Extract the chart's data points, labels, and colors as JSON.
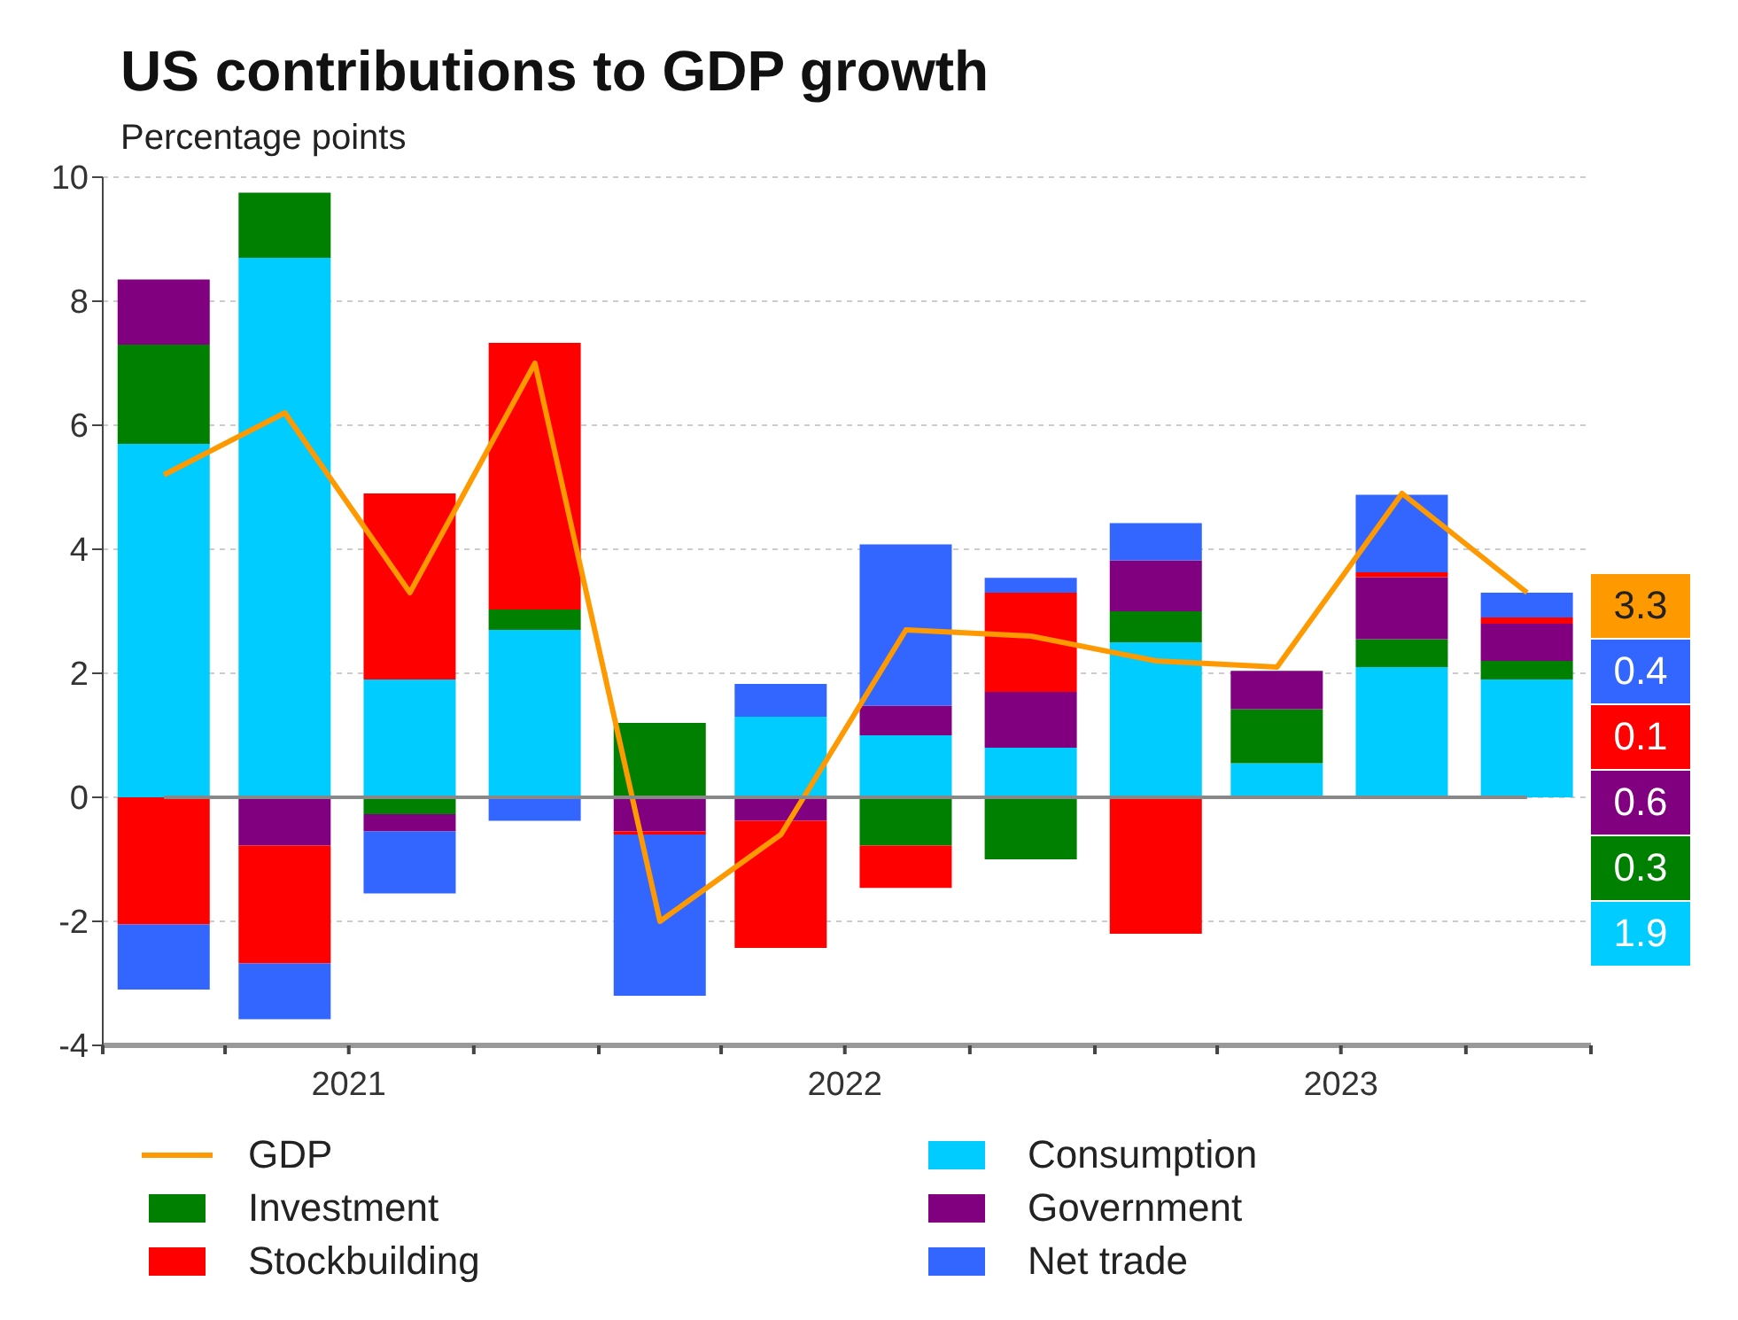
{
  "chart_data": {
    "type": "bar",
    "title": "US contributions to GDP growth",
    "subtitle": "Percentage points",
    "x": [
      "2021-02-15",
      "2021-05-15",
      "2021-08-15",
      "2021-11-15",
      "2022-02-15",
      "2022-05-15",
      "2022-08-15",
      "2022-11-15",
      "2023-02-15",
      "2023-05-15",
      "2023-08-15",
      "2023-11-15"
    ],
    "xlim": [
      "2021-01-01",
      "2024-01-01"
    ],
    "xticks": [
      {
        "value": "2021-01-01",
        "label": null
      },
      {
        "value": "2021-04-01",
        "label": null
      },
      {
        "value": "2021-07-01",
        "label": "2021"
      },
      {
        "value": "2021-10-01",
        "label": null
      },
      {
        "value": "2022-01-01",
        "label": null
      },
      {
        "value": "2022-04-01",
        "label": null
      },
      {
        "value": "2022-07-01",
        "label": "2022"
      },
      {
        "value": "2022-10-01",
        "label": null
      },
      {
        "value": "2023-01-01",
        "label": null
      },
      {
        "value": "2023-04-01",
        "label": null
      },
      {
        "value": "2023-07-01",
        "label": "2023"
      },
      {
        "value": "2023-10-01",
        "label": null
      },
      {
        "value": "2024-01-01",
        "label": null
      }
    ],
    "annotations": [
      "3.3",
      "0.4",
      "0.1",
      "0.6",
      "0.3",
      "1.9"
    ],
    "stacked": true,
    "ylim": [
      -4,
      10
    ],
    "yticks": [
      -4,
      -2,
      0,
      2,
      4,
      6,
      8,
      10
    ],
    "grid": "y",
    "legend": "bottom",
    "series": [
      {
        "name": "GDP",
        "type": "line",
        "color": "#ff9900",
        "values": [
          5.2,
          6.2,
          3.3,
          7.0,
          -2.0,
          -0.6,
          2.7,
          2.6,
          2.2,
          2.1,
          4.9,
          3.3
        ]
      },
      {
        "name": "Consumption",
        "color": "#00ccff",
        "values": [
          5.7,
          8.7,
          1.9,
          2.7,
          0,
          1.3,
          1.0,
          0.8,
          2.5,
          0.55,
          2.1,
          1.9
        ]
      },
      {
        "name": "Investment",
        "color": "#008000",
        "values": [
          1.6,
          1.05,
          -0.27,
          0.33,
          1.2,
          0,
          -0.78,
          -1.0,
          0.5,
          0.87,
          0.45,
          0.3
        ]
      },
      {
        "name": "Government",
        "color": "#800080",
        "values": [
          1.05,
          -0.78,
          -0.28,
          0,
          -0.55,
          -0.38,
          0.48,
          0.9,
          0.82,
          0.62,
          1.0,
          0.6
        ]
      },
      {
        "name": "Stockbuilding",
        "color": "#ff0000",
        "values": [
          -2.05,
          -1.9,
          3.0,
          4.3,
          -0.05,
          -2.05,
          -0.68,
          1.6,
          -2.2,
          0,
          0.08,
          0.1
        ]
      },
      {
        "name": "Net trade",
        "color": "#3366ff",
        "values": [
          -1.05,
          -0.9,
          -1.0,
          -0.38,
          -2.6,
          0.53,
          2.6,
          0.24,
          0.6,
          0,
          1.25,
          0.4
        ]
      }
    ]
  }
}
